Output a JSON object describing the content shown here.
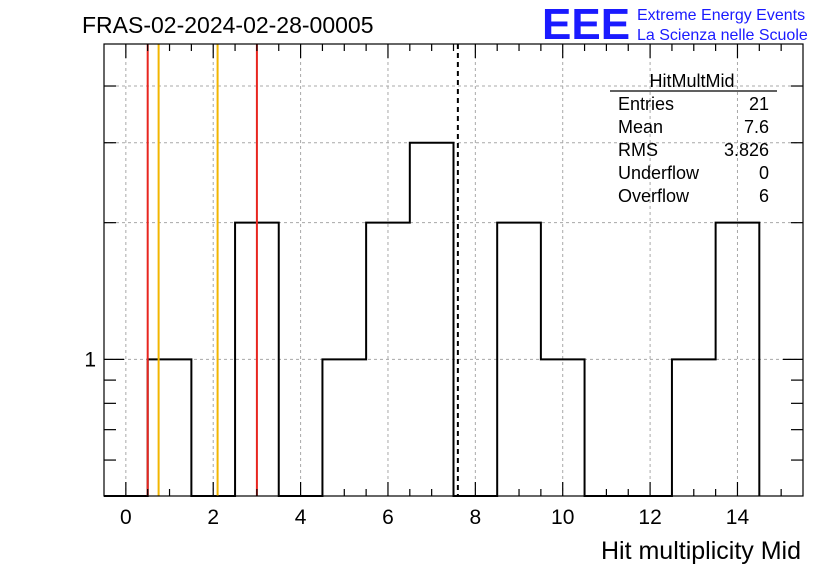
{
  "chart_data": {
    "type": "histogram",
    "title": "FRAS-02-2024-02-28-00005",
    "xlabel": "Hit multiplicity Mid",
    "ylabel": "",
    "xlim": [
      -0.5,
      15.5
    ],
    "y_scale": "log",
    "ylim": [
      0.5,
      4.95
    ],
    "grid": true,
    "x_ticks": [
      0,
      2,
      4,
      6,
      8,
      10,
      12,
      14
    ],
    "x_tick_labels": [
      "0",
      "2",
      "4",
      "6",
      "8",
      "10",
      "12",
      "14"
    ],
    "y_ticks": [
      1
    ],
    "y_tick_labels": [
      "1"
    ],
    "bin_edges": [
      -0.5,
      0.5,
      1.5,
      2.5,
      3.5,
      4.5,
      5.5,
      6.5,
      7.5,
      8.5,
      9.5,
      10.5,
      11.5,
      12.5,
      13.5,
      14.5
    ],
    "values": [
      0,
      1,
      0,
      2,
      0,
      1,
      2,
      3,
      0,
      2,
      1,
      0,
      0,
      1,
      2
    ],
    "vertical_lines": [
      {
        "x": 0.5,
        "color": "#e8251f",
        "style": "solid"
      },
      {
        "x": 0.75,
        "color": "#f2b600",
        "style": "solid"
      },
      {
        "x": 2.1,
        "color": "#f2b600",
        "style": "solid"
      },
      {
        "x": 3.0,
        "color": "#e8251f",
        "style": "solid"
      },
      {
        "x": 7.6,
        "color": "#000000",
        "style": "dashed"
      }
    ],
    "stats_box": {
      "title": "HitMultMid",
      "rows": [
        {
          "label": "Entries",
          "value": "21"
        },
        {
          "label": "Mean",
          "value": "7.6"
        },
        {
          "label": "RMS",
          "value": "3.826"
        },
        {
          "label": "Underflow",
          "value": "0"
        },
        {
          "label": "Overflow",
          "value": "6"
        }
      ]
    }
  },
  "logo": {
    "text": "EEE",
    "line1": "Extreme Energy Events",
    "line2": "La Scienza nelle Scuole",
    "color": "#1a1aff"
  }
}
